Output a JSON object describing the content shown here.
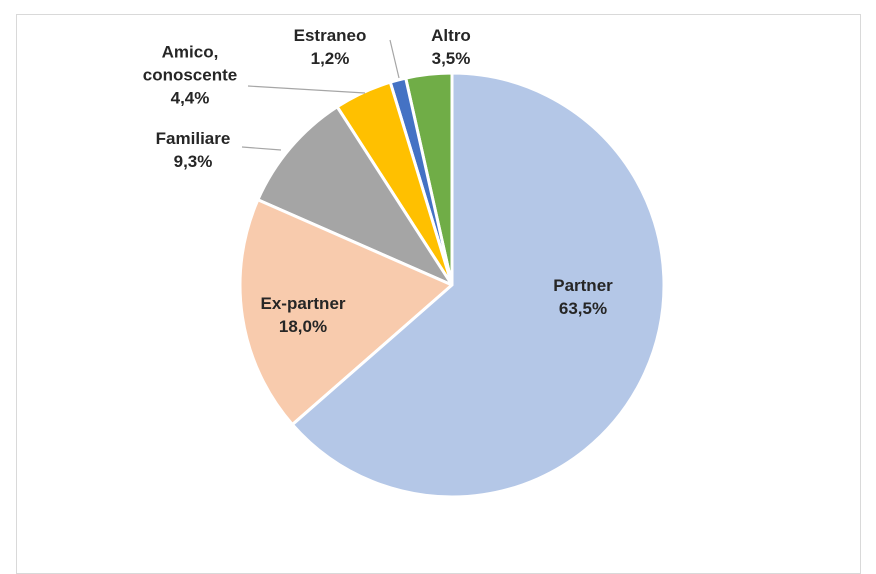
{
  "chart_data": {
    "type": "pie",
    "categories": [
      "Partner",
      "Ex-partner",
      "Familiare",
      "Amico, conoscente",
      "Estraneo",
      "Altro"
    ],
    "values": [
      63.5,
      18.0,
      9.3,
      4.4,
      1.2,
      3.5
    ],
    "value_labels": [
      "63,5%",
      "18,0%",
      "9,3%",
      "4,4%",
      "1,2%",
      "3,5%"
    ],
    "colors": [
      "#b4c7e7",
      "#f8cbad",
      "#a5a5a5",
      "#ffc000",
      "#4472c4",
      "#70ad47"
    ]
  }
}
